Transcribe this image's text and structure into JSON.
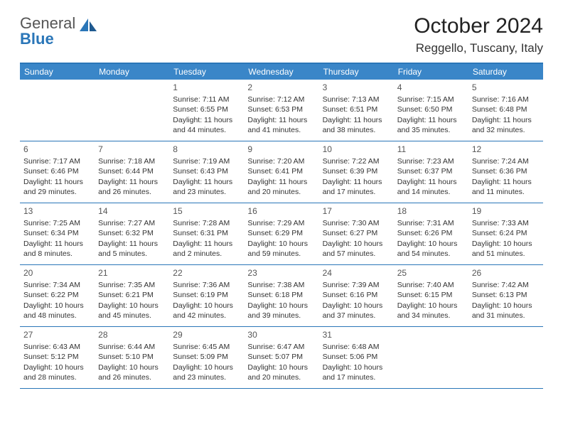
{
  "logo": {
    "text1": "General",
    "text2": "Blue"
  },
  "title": "October 2024",
  "location": "Reggello, Tuscany, Italy",
  "colors": {
    "header_bg": "#3a86c8",
    "border": "#2a76b8",
    "text": "#333333",
    "logo_gray": "#555555",
    "logo_blue": "#2a76b8",
    "white": "#ffffff"
  },
  "typography": {
    "title_fontsize": 30,
    "location_fontsize": 17,
    "header_fontsize": 12,
    "cell_fontsize": 10.5,
    "daynum_fontsize": 12
  },
  "dayHeaders": [
    "Sunday",
    "Monday",
    "Tuesday",
    "Wednesday",
    "Thursday",
    "Friday",
    "Saturday"
  ],
  "weeks": [
    [
      {
        "num": "",
        "sunrise": "",
        "sunset": "",
        "daylight": ""
      },
      {
        "num": "",
        "sunrise": "",
        "sunset": "",
        "daylight": ""
      },
      {
        "num": "1",
        "sunrise": "Sunrise: 7:11 AM",
        "sunset": "Sunset: 6:55 PM",
        "daylight": "Daylight: 11 hours and 44 minutes."
      },
      {
        "num": "2",
        "sunrise": "Sunrise: 7:12 AM",
        "sunset": "Sunset: 6:53 PM",
        "daylight": "Daylight: 11 hours and 41 minutes."
      },
      {
        "num": "3",
        "sunrise": "Sunrise: 7:13 AM",
        "sunset": "Sunset: 6:51 PM",
        "daylight": "Daylight: 11 hours and 38 minutes."
      },
      {
        "num": "4",
        "sunrise": "Sunrise: 7:15 AM",
        "sunset": "Sunset: 6:50 PM",
        "daylight": "Daylight: 11 hours and 35 minutes."
      },
      {
        "num": "5",
        "sunrise": "Sunrise: 7:16 AM",
        "sunset": "Sunset: 6:48 PM",
        "daylight": "Daylight: 11 hours and 32 minutes."
      }
    ],
    [
      {
        "num": "6",
        "sunrise": "Sunrise: 7:17 AM",
        "sunset": "Sunset: 6:46 PM",
        "daylight": "Daylight: 11 hours and 29 minutes."
      },
      {
        "num": "7",
        "sunrise": "Sunrise: 7:18 AM",
        "sunset": "Sunset: 6:44 PM",
        "daylight": "Daylight: 11 hours and 26 minutes."
      },
      {
        "num": "8",
        "sunrise": "Sunrise: 7:19 AM",
        "sunset": "Sunset: 6:43 PM",
        "daylight": "Daylight: 11 hours and 23 minutes."
      },
      {
        "num": "9",
        "sunrise": "Sunrise: 7:20 AM",
        "sunset": "Sunset: 6:41 PM",
        "daylight": "Daylight: 11 hours and 20 minutes."
      },
      {
        "num": "10",
        "sunrise": "Sunrise: 7:22 AM",
        "sunset": "Sunset: 6:39 PM",
        "daylight": "Daylight: 11 hours and 17 minutes."
      },
      {
        "num": "11",
        "sunrise": "Sunrise: 7:23 AM",
        "sunset": "Sunset: 6:37 PM",
        "daylight": "Daylight: 11 hours and 14 minutes."
      },
      {
        "num": "12",
        "sunrise": "Sunrise: 7:24 AM",
        "sunset": "Sunset: 6:36 PM",
        "daylight": "Daylight: 11 hours and 11 minutes."
      }
    ],
    [
      {
        "num": "13",
        "sunrise": "Sunrise: 7:25 AM",
        "sunset": "Sunset: 6:34 PM",
        "daylight": "Daylight: 11 hours and 8 minutes."
      },
      {
        "num": "14",
        "sunrise": "Sunrise: 7:27 AM",
        "sunset": "Sunset: 6:32 PM",
        "daylight": "Daylight: 11 hours and 5 minutes."
      },
      {
        "num": "15",
        "sunrise": "Sunrise: 7:28 AM",
        "sunset": "Sunset: 6:31 PM",
        "daylight": "Daylight: 11 hours and 2 minutes."
      },
      {
        "num": "16",
        "sunrise": "Sunrise: 7:29 AM",
        "sunset": "Sunset: 6:29 PM",
        "daylight": "Daylight: 10 hours and 59 minutes."
      },
      {
        "num": "17",
        "sunrise": "Sunrise: 7:30 AM",
        "sunset": "Sunset: 6:27 PM",
        "daylight": "Daylight: 10 hours and 57 minutes."
      },
      {
        "num": "18",
        "sunrise": "Sunrise: 7:31 AM",
        "sunset": "Sunset: 6:26 PM",
        "daylight": "Daylight: 10 hours and 54 minutes."
      },
      {
        "num": "19",
        "sunrise": "Sunrise: 7:33 AM",
        "sunset": "Sunset: 6:24 PM",
        "daylight": "Daylight: 10 hours and 51 minutes."
      }
    ],
    [
      {
        "num": "20",
        "sunrise": "Sunrise: 7:34 AM",
        "sunset": "Sunset: 6:22 PM",
        "daylight": "Daylight: 10 hours and 48 minutes."
      },
      {
        "num": "21",
        "sunrise": "Sunrise: 7:35 AM",
        "sunset": "Sunset: 6:21 PM",
        "daylight": "Daylight: 10 hours and 45 minutes."
      },
      {
        "num": "22",
        "sunrise": "Sunrise: 7:36 AM",
        "sunset": "Sunset: 6:19 PM",
        "daylight": "Daylight: 10 hours and 42 minutes."
      },
      {
        "num": "23",
        "sunrise": "Sunrise: 7:38 AM",
        "sunset": "Sunset: 6:18 PM",
        "daylight": "Daylight: 10 hours and 39 minutes."
      },
      {
        "num": "24",
        "sunrise": "Sunrise: 7:39 AM",
        "sunset": "Sunset: 6:16 PM",
        "daylight": "Daylight: 10 hours and 37 minutes."
      },
      {
        "num": "25",
        "sunrise": "Sunrise: 7:40 AM",
        "sunset": "Sunset: 6:15 PM",
        "daylight": "Daylight: 10 hours and 34 minutes."
      },
      {
        "num": "26",
        "sunrise": "Sunrise: 7:42 AM",
        "sunset": "Sunset: 6:13 PM",
        "daylight": "Daylight: 10 hours and 31 minutes."
      }
    ],
    [
      {
        "num": "27",
        "sunrise": "Sunrise: 6:43 AM",
        "sunset": "Sunset: 5:12 PM",
        "daylight": "Daylight: 10 hours and 28 minutes."
      },
      {
        "num": "28",
        "sunrise": "Sunrise: 6:44 AM",
        "sunset": "Sunset: 5:10 PM",
        "daylight": "Daylight: 10 hours and 26 minutes."
      },
      {
        "num": "29",
        "sunrise": "Sunrise: 6:45 AM",
        "sunset": "Sunset: 5:09 PM",
        "daylight": "Daylight: 10 hours and 23 minutes."
      },
      {
        "num": "30",
        "sunrise": "Sunrise: 6:47 AM",
        "sunset": "Sunset: 5:07 PM",
        "daylight": "Daylight: 10 hours and 20 minutes."
      },
      {
        "num": "31",
        "sunrise": "Sunrise: 6:48 AM",
        "sunset": "Sunset: 5:06 PM",
        "daylight": "Daylight: 10 hours and 17 minutes."
      },
      {
        "num": "",
        "sunrise": "",
        "sunset": "",
        "daylight": ""
      },
      {
        "num": "",
        "sunrise": "",
        "sunset": "",
        "daylight": ""
      }
    ]
  ]
}
